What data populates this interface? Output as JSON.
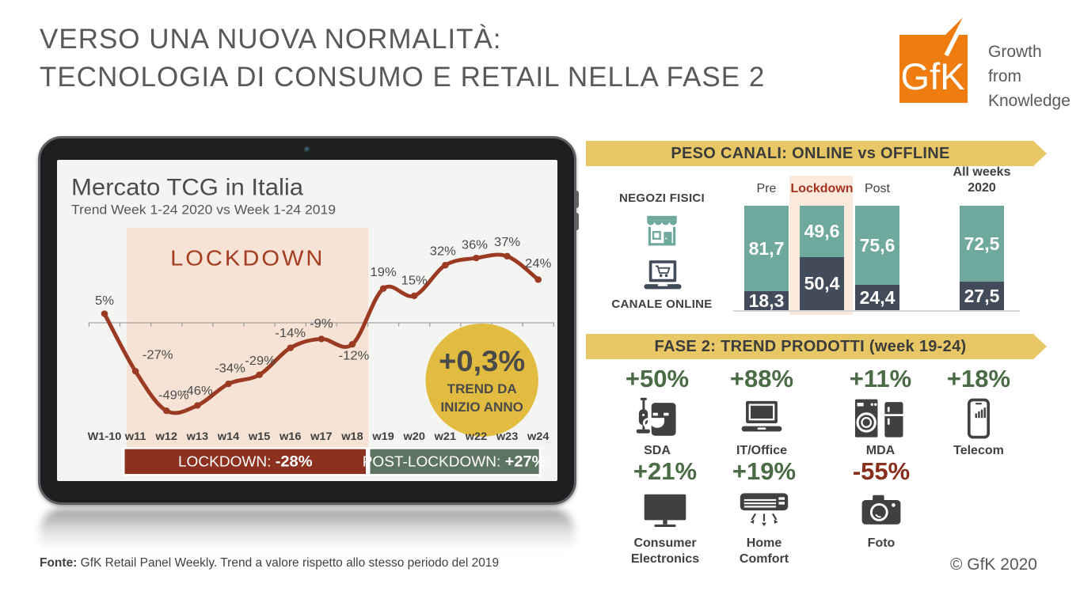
{
  "header": {
    "title_lines": [
      "VERSO UNA NUOVA NORMALITÀ:",
      "TECNOLOGIA DI CONSUMO E RETAIL NELLA FASE 2"
    ],
    "logo": {
      "text": "GfK",
      "tagline_lines": [
        "Growth",
        "from",
        "Knowledge"
      ],
      "color": "#ef7c0e"
    }
  },
  "palette": {
    "gold_banner": "#e7c766",
    "teal": "#6fa89d",
    "navy": "#414b5a",
    "peach_highlight": "#fbe9dc",
    "chart_band": "#f6e3d5",
    "line_brick": "#9b3a22",
    "maroon_bar": "#8c3120",
    "green_bar": "#5d7460",
    "badge_yellow": "#e2bc40",
    "positive_green": "#4a6b45",
    "negative_red": "#8a2e1d",
    "icon_charcoal": "#3f4141",
    "text_dark": "#3f4040",
    "text_gray": "#58595b"
  },
  "chart_data": [
    {
      "type": "line",
      "title": "Mercato TCG in Italia",
      "subtitle": "Trend Week 1-24 2020 vs Week 1-24 2019",
      "categories": [
        "W1-10",
        "w11",
        "w12",
        "w13",
        "w14",
        "w15",
        "w16",
        "w17",
        "w18",
        "w19",
        "w20",
        "w21",
        "w22",
        "w23",
        "w24"
      ],
      "values": [
        5,
        -27,
        -49,
        -46,
        -34,
        -29,
        -14,
        -9,
        -12,
        19,
        15,
        32,
        36,
        37,
        24
      ],
      "point_labels": [
        "5%",
        "-27%",
        "-49%",
        "-46%",
        "-34%",
        "-29%",
        "-14%",
        "-9%",
        "-12%",
        "19%",
        "15%",
        "32%",
        "36%",
        "37%",
        "24%"
      ],
      "ylim": [
        -58,
        45
      ],
      "grid": false,
      "line_color": "#9b3a22",
      "lockdown_band": {
        "label": "LOCKDOWN",
        "from": "w11",
        "to": "w18",
        "color": "#f6e3d5",
        "label_color": "#a43c22"
      },
      "badge": {
        "value": "+0,3%",
        "caption_lines": [
          "TREND DA",
          "INIZIO ANNO"
        ],
        "color": "#e2bc40"
      },
      "summary": [
        {
          "label": "LOCKDOWN:",
          "value": "-28%",
          "color": "#8c3120"
        },
        {
          "label": "POST-LOCKDOWN:",
          "value": "+27%",
          "color": "#5d7460"
        }
      ]
    },
    {
      "type": "bar",
      "stacked": true,
      "title": "PESO CANALI: ONLINE vs OFFLINE",
      "categories": [
        "Pre",
        "Lockdown",
        "Post",
        "All weeks 2020"
      ],
      "categories_display": [
        [
          "Pre"
        ],
        [
          "Lockdown"
        ],
        [
          "Post"
        ],
        [
          "All weeks",
          "2020"
        ]
      ],
      "series": [
        {
          "name": "NEGOZI FISICI",
          "icon": "storefront-icon",
          "values": [
            81.7,
            49.6,
            75.6,
            72.5
          ],
          "labels": [
            "81,7",
            "49,6",
            "75,6",
            "72,5"
          ],
          "color": "#6fa89d"
        },
        {
          "name": "CANALE ONLINE",
          "icon": "laptop-cart-icon",
          "values": [
            18.3,
            50.4,
            24.4,
            27.5
          ],
          "labels": [
            "18,3",
            "50,4",
            "24,4",
            "27,5"
          ],
          "color": "#414b5a"
        }
      ],
      "highlight_category": "Lockdown",
      "highlight_color": "#fbe9dc",
      "legend_position": "left",
      "ylim": [
        0,
        100
      ]
    },
    {
      "type": "table",
      "title": "FASE 2: TREND PRODOTTI (week 19-24)",
      "items": [
        {
          "label": "SDA",
          "value": "+50%",
          "icon": "sda-icon"
        },
        {
          "label": "IT/Office",
          "value": "+88%",
          "icon": "laptop-icon"
        },
        {
          "label": "MDA",
          "value": "+11%",
          "icon": "appliances-icon"
        },
        {
          "label": "Telecom",
          "value": "+18%",
          "icon": "smartphone-icon"
        },
        {
          "label": "Consumer Electronics",
          "value": "+21%",
          "icon": "tv-icon"
        },
        {
          "label": "Home Comfort",
          "value": "+19%",
          "icon": "air-conditioner-icon"
        },
        {
          "label": "Foto",
          "value": "-55%",
          "icon": "camera-icon"
        }
      ],
      "positive_color": "#4a6b45",
      "negative_color": "#8a2e1d"
    }
  ],
  "footer": {
    "source_bold": "Fonte:",
    "source_rest": " GfK Retail Panel Weekly. Trend a valore rispetto allo stesso periodo del 2019",
    "copyright": "© GfK 2020"
  }
}
